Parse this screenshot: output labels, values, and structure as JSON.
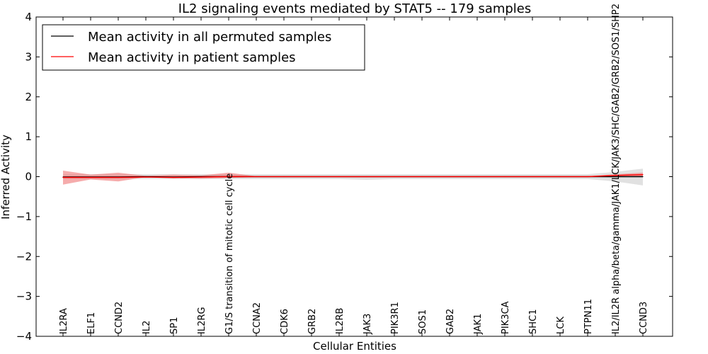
{
  "chart_data": {
    "type": "line",
    "title": "IL2 signaling events mediated by STAT5 -- 179 samples",
    "xlabel": "Cellular Entities",
    "ylabel": "Inferred Activity",
    "ylim": [
      -4,
      4
    ],
    "yticks": [
      {
        "value": -4,
        "label": "−4"
      },
      {
        "value": -3,
        "label": "−3"
      },
      {
        "value": -2,
        "label": "−2"
      },
      {
        "value": -1,
        "label": "−1"
      },
      {
        "value": 0,
        "label": "0"
      },
      {
        "value": 1,
        "label": "1"
      },
      {
        "value": 2,
        "label": "2"
      },
      {
        "value": 3,
        "label": "3"
      },
      {
        "value": 4,
        "label": "4"
      }
    ],
    "categories": [
      "IL2RA",
      "ELF1",
      "CCND2",
      "IL2",
      "SP1",
      "IL2RG",
      "G1/S transition of mitotic cell cycle",
      "CCNA2",
      "CDK6",
      "GRB2",
      "IL2RB",
      "JAK3",
      "PIK3R1",
      "SOS1",
      "GAB2",
      "JAK1",
      "PIK3CA",
      "SHC1",
      "LCK",
      "PTPN11",
      "IL2/IL2R alpha/beta/gamma/JAK1/LCK/JAK3/SHC/GAB2/GRB2/SOS1/SHP2",
      "CCND3"
    ],
    "legend_position": "top-left",
    "series": [
      {
        "name": "Mean activity in all permuted samples",
        "color": "#000000",
        "band_color": "#c8c8c8",
        "values": [
          -0.01,
          -0.01,
          -0.01,
          0.0,
          -0.01,
          0.0,
          0.0,
          0.0,
          0.0,
          0.0,
          0.0,
          0.0,
          0.0,
          0.0,
          0.0,
          0.0,
          0.0,
          0.0,
          0.0,
          0.0,
          0.0,
          0.0
        ],
        "band_low": [
          -0.06,
          -0.06,
          -0.06,
          -0.06,
          -0.06,
          -0.06,
          -0.06,
          -0.06,
          -0.06,
          -0.06,
          -0.06,
          -0.08,
          -0.06,
          -0.06,
          -0.06,
          -0.06,
          -0.06,
          -0.06,
          -0.06,
          -0.06,
          -0.12,
          -0.22
        ],
        "band_high": [
          0.06,
          0.06,
          0.06,
          0.06,
          0.06,
          0.06,
          0.06,
          0.06,
          0.06,
          0.06,
          0.06,
          0.06,
          0.06,
          0.06,
          0.06,
          0.06,
          0.06,
          0.06,
          0.06,
          0.06,
          0.12,
          0.2
        ]
      },
      {
        "name": "Mean activity in patient samples",
        "color": "#ff0000",
        "band_color": "#f08080",
        "values": [
          -0.02,
          -0.02,
          -0.02,
          -0.01,
          -0.02,
          -0.01,
          0.0,
          0.0,
          0.0,
          0.0,
          0.0,
          0.0,
          0.0,
          0.0,
          0.0,
          0.0,
          0.0,
          0.0,
          0.0,
          0.0,
          0.03,
          0.05
        ],
        "band_low": [
          -0.2,
          -0.07,
          -0.12,
          -0.01,
          -0.04,
          -0.05,
          -0.03,
          -0.01,
          -0.01,
          -0.01,
          -0.01,
          -0.01,
          -0.01,
          -0.01,
          -0.01,
          -0.01,
          -0.01,
          -0.01,
          -0.01,
          -0.01,
          0.0,
          0.0
        ],
        "band_high": [
          0.15,
          0.05,
          0.1,
          0.02,
          0.05,
          0.03,
          0.1,
          0.01,
          0.01,
          0.01,
          0.01,
          0.01,
          0.01,
          0.01,
          0.01,
          0.01,
          0.01,
          0.01,
          0.01,
          0.01,
          0.06,
          0.1
        ]
      }
    ]
  }
}
